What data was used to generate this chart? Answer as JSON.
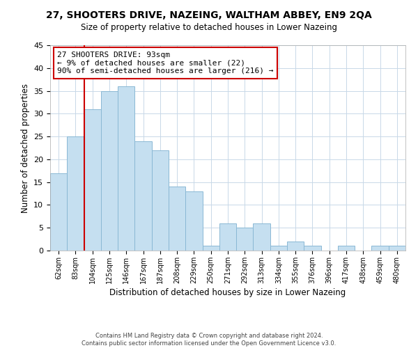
{
  "title": "27, SHOOTERS DRIVE, NAZEING, WALTHAM ABBEY, EN9 2QA",
  "subtitle": "Size of property relative to detached houses in Lower Nazeing",
  "xlabel": "Distribution of detached houses by size in Lower Nazeing",
  "ylabel": "Number of detached properties",
  "bins": [
    "62sqm",
    "83sqm",
    "104sqm",
    "125sqm",
    "146sqm",
    "167sqm",
    "187sqm",
    "208sqm",
    "229sqm",
    "250sqm",
    "271sqm",
    "292sqm",
    "313sqm",
    "334sqm",
    "355sqm",
    "376sqm",
    "396sqm",
    "417sqm",
    "438sqm",
    "459sqm",
    "480sqm"
  ],
  "counts": [
    17,
    25,
    31,
    35,
    36,
    24,
    22,
    14,
    13,
    1,
    6,
    5,
    6,
    1,
    2,
    1,
    0,
    1,
    0,
    1,
    1
  ],
  "bar_color": "#c5dff0",
  "bar_edge_color": "#8ab8d4",
  "highlight_line_color": "#cc0000",
  "annotation_title": "27 SHOOTERS DRIVE: 93sqm",
  "annotation_line1": "← 9% of detached houses are smaller (22)",
  "annotation_line2": "90% of semi-detached houses are larger (216) →",
  "ylim": [
    0,
    45
  ],
  "footer1": "Contains HM Land Registry data © Crown copyright and database right 2024.",
  "footer2": "Contains public sector information licensed under the Open Government Licence v3.0."
}
